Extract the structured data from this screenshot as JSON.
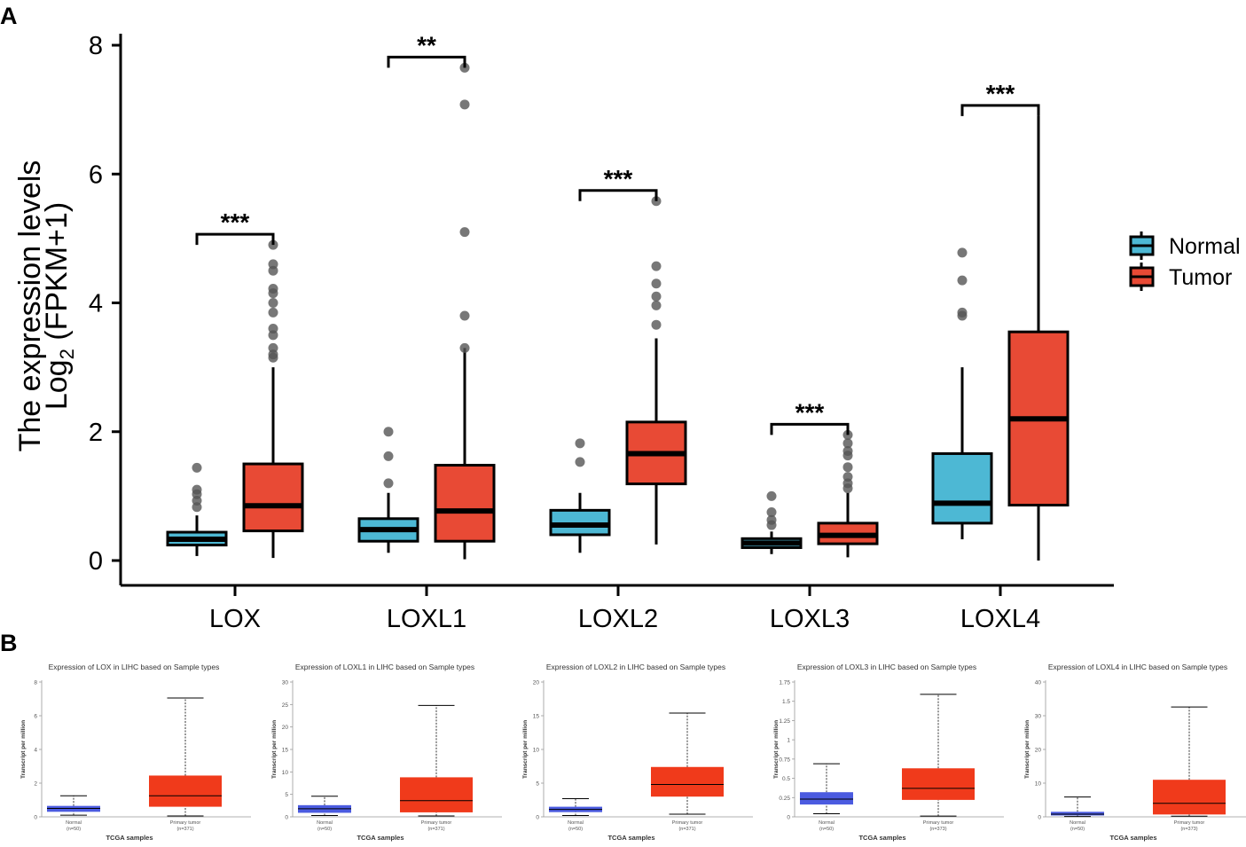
{
  "panel_a_label": "A",
  "panel_b_label": "B",
  "chart_data": [
    {
      "id": "panel-a",
      "type": "boxplot",
      "ylabel_line1": "The expression levels",
      "ylabel_line2_prefix": "Log",
      "ylabel_line2_sub": "2",
      "ylabel_line2_suffix": " (FPKM+1)",
      "ylim": [
        0,
        8
      ],
      "yticks": [
        0,
        2,
        4,
        6,
        8
      ],
      "categories": [
        "LOX",
        "LOXL1",
        "LOXL2",
        "LOXL3",
        "LOXL4"
      ],
      "legend": [
        {
          "name": "Normal",
          "color": "#4db8d4"
        },
        {
          "name": "Tumor",
          "color": "#e84a35"
        }
      ],
      "groups": [
        {
          "gene": "LOX",
          "sig": "***",
          "normal": {
            "min": 0.07,
            "q1": 0.24,
            "median": 0.33,
            "q3": 0.44,
            "max": 0.7,
            "outliers": [
              0.83,
              0.93,
              1.03,
              1.1,
              1.44
            ]
          },
          "tumor": {
            "min": 0.04,
            "q1": 0.46,
            "median": 0.85,
            "q3": 1.5,
            "max": 3.0,
            "outliers": [
              3.15,
              3.2,
              3.3,
              3.5,
              3.6,
              3.85,
              4.0,
              4.15,
              4.22,
              4.5,
              4.6,
              4.9
            ]
          }
        },
        {
          "gene": "LOXL1",
          "sig": "**",
          "normal": {
            "min": 0.12,
            "q1": 0.3,
            "median": 0.48,
            "q3": 0.65,
            "max": 1.05,
            "outliers": [
              1.2,
              1.62,
              2.0
            ]
          },
          "tumor": {
            "min": 0.02,
            "q1": 0.3,
            "median": 0.77,
            "q3": 1.48,
            "max": 3.3,
            "outliers": [
              3.3,
              3.8,
              5.1,
              7.08,
              7.65
            ]
          }
        },
        {
          "gene": "LOXL2",
          "sig": "***",
          "normal": {
            "min": 0.12,
            "q1": 0.4,
            "median": 0.55,
            "q3": 0.78,
            "max": 1.05,
            "outliers": [
              1.53,
              1.82
            ]
          },
          "tumor": {
            "min": 0.25,
            "q1": 1.19,
            "median": 1.66,
            "q3": 2.15,
            "max": 3.45,
            "outliers": [
              3.66,
              3.96,
              4.1,
              4.3,
              4.57,
              5.58
            ]
          }
        },
        {
          "gene": "LOXL3",
          "sig": "***",
          "normal": {
            "min": 0.1,
            "q1": 0.2,
            "median": 0.27,
            "q3": 0.34,
            "max": 0.45,
            "outliers": [
              0.55,
              0.63,
              0.75,
              1.0
            ]
          },
          "tumor": {
            "min": 0.05,
            "q1": 0.26,
            "median": 0.39,
            "q3": 0.58,
            "max": 1.05,
            "outliers": [
              1.12,
              1.2,
              1.3,
              1.45,
              1.63,
              1.7,
              1.82,
              1.95
            ]
          }
        },
        {
          "gene": "LOXL4",
          "sig": "***",
          "normal": {
            "min": 0.33,
            "q1": 0.58,
            "median": 0.89,
            "q3": 1.66,
            "max": 3.0,
            "outliers": [
              3.8,
              3.85,
              4.35,
              4.78
            ]
          },
          "tumor": {
            "min": 0.0,
            "q1": 0.86,
            "median": 2.2,
            "q3": 3.55,
            "max": 6.9,
            "outliers": []
          }
        }
      ]
    },
    {
      "id": "panel-b",
      "type": "boxplot-small-multiples",
      "xlabel": "TCGA samples",
      "ylabel": "Transcript per million",
      "normal_color": "#4b5be0",
      "tumor_color": "#f03a1b",
      "plots": [
        {
          "title": "Expression of LOX in LIHC based on Sample types",
          "ymax": 8,
          "yticks": [
            0,
            2,
            4,
            6,
            8
          ],
          "ytick_labels": [
            "0",
            "2",
            "4",
            "6",
            "8"
          ],
          "normal_label": "Normal",
          "normal_n": "(n=50)",
          "tumor_label": "Primary tumor",
          "tumor_n": "(n=371)",
          "normal": {
            "min": 0.1,
            "q1": 0.3,
            "median": 0.5,
            "q3": 0.65,
            "max": 1.25
          },
          "tumor": {
            "min": 0.05,
            "q1": 0.6,
            "median": 1.25,
            "q3": 2.45,
            "max": 7.05
          }
        },
        {
          "title": "Expression of LOXL1 in LIHC based on Sample types",
          "ymax": 30,
          "yticks": [
            0,
            5,
            10,
            15,
            20,
            25,
            30
          ],
          "ytick_labels": [
            "0",
            "5",
            "10",
            "15",
            "20",
            "25",
            "30"
          ],
          "normal_label": "Normal",
          "normal_n": "(n=50)",
          "tumor_label": "Primary tumor",
          "tumor_n": "(n=371)",
          "normal": {
            "min": 0.3,
            "q1": 0.9,
            "median": 1.8,
            "q3": 2.6,
            "max": 4.6
          },
          "tumor": {
            "min": 0.2,
            "q1": 1.0,
            "median": 3.6,
            "q3": 8.8,
            "max": 24.8
          }
        },
        {
          "title": "Expression of LOXL2 in LIHC based on Sample types",
          "ymax": 20,
          "yticks": [
            0,
            5,
            10,
            15,
            20
          ],
          "ytick_labels": [
            "0",
            "5",
            "10",
            "15",
            "20"
          ],
          "normal_label": "Normal",
          "normal_n": "(n=50)",
          "tumor_label": "Primary tumor",
          "tumor_n": "(n=371)",
          "normal": {
            "min": 0.2,
            "q1": 0.7,
            "median": 1.1,
            "q3": 1.5,
            "max": 2.7
          },
          "tumor": {
            "min": 0.4,
            "q1": 3.0,
            "median": 4.8,
            "q3": 7.4,
            "max": 15.4
          }
        },
        {
          "title": "Expression of LOXL3 in LIHC based on Sample types",
          "ymax": 1.75,
          "yticks": [
            0,
            0.25,
            0.5,
            0.75,
            1,
            1.25,
            1.5,
            1.75
          ],
          "ytick_labels": [
            "0",
            "0.25",
            "0.5",
            "0.75",
            "1",
            "1.25",
            "1.5",
            "1.75"
          ],
          "normal_label": "Normal",
          "normal_n": "(n=50)",
          "tumor_label": "Primary tumor",
          "tumor_n": "(n=373)",
          "normal": {
            "min": 0.04,
            "q1": 0.16,
            "median": 0.23,
            "q3": 0.32,
            "max": 0.69
          },
          "tumor": {
            "min": 0.01,
            "q1": 0.22,
            "median": 0.37,
            "q3": 0.63,
            "max": 1.59
          }
        },
        {
          "title": "Expression of LOXL4 in LIHC based on Sample types",
          "ymax": 40,
          "yticks": [
            0,
            10,
            20,
            30,
            40
          ],
          "ytick_labels": [
            "0",
            "10",
            "20",
            "30",
            "40"
          ],
          "normal_label": "Normal",
          "normal_n": "(n=50)",
          "tumor_label": "Primary tumor",
          "tumor_n": "(n=373)",
          "normal": {
            "min": 0.1,
            "q1": 0.4,
            "median": 0.8,
            "q3": 1.5,
            "max": 5.9
          },
          "tumor": {
            "min": 0.2,
            "q1": 0.7,
            "median": 4.0,
            "q3": 11.0,
            "max": 32.6
          }
        }
      ]
    }
  ]
}
